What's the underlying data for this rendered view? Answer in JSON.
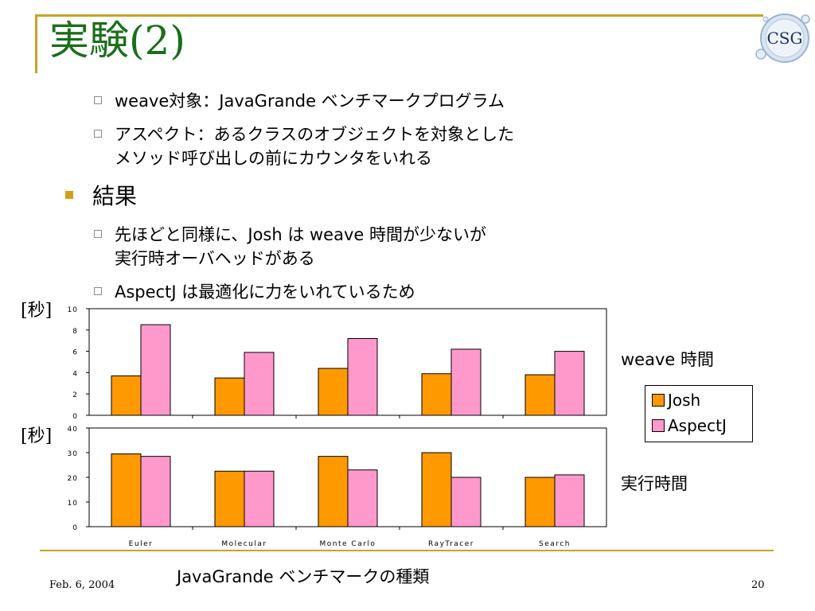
{
  "slide": {
    "title": "実験(2)",
    "logo_text": "CSG",
    "bullets": [
      {
        "text": "weave対象：JavaGrande ベンチマークプログラム"
      },
      {
        "line1": "アスペクト：あるクラスのオブジェクトを対象とした",
        "line2": "メソッド呼び出しの前にカウンタをいれる"
      }
    ],
    "result_heading": "結果",
    "results": [
      {
        "line1": "先ほどと同様に、Josh は weave 時間が少ないが",
        "line2": "実行時オーバヘッドがある"
      },
      {
        "text": "AspectJ は最適化に力をいれているため"
      }
    ],
    "unit_label": "[秒]",
    "weave_label": "weave 時間",
    "exec_label": "実行時間",
    "footer_center": "JavaGrande ベンチマークの種類",
    "footer_date": "Feb. 6, 2004",
    "page_number": "20",
    "colors": {
      "title": "#1a6f1a",
      "accent": "#c9a227",
      "josh": "#ff9900",
      "aspectj": "#ff99cc"
    }
  },
  "legend": {
    "josh": "Josh",
    "aspectj": "AspectJ"
  },
  "chart_data": [
    {
      "type": "bar",
      "categories": [
        "Euler",
        "Molecular",
        "Monte Carlo",
        "RayTracer",
        "Search"
      ],
      "series": [
        {
          "name": "Josh",
          "values": [
            3.7,
            3.5,
            4.4,
            3.9,
            3.8
          ]
        },
        {
          "name": "AspectJ",
          "values": [
            8.5,
            5.9,
            7.2,
            6.2,
            6.0
          ]
        }
      ],
      "ylim": [
        0,
        10
      ],
      "yticks": [
        0,
        2,
        4,
        6,
        8,
        10
      ],
      "ylabel": "[秒]",
      "show_category_labels": false
    },
    {
      "type": "bar",
      "categories": [
        "Euler",
        "Molecular",
        "Monte Carlo",
        "RayTracer",
        "Search"
      ],
      "series": [
        {
          "name": "Josh",
          "values": [
            29.5,
            22.5,
            28.5,
            30,
            20
          ]
        },
        {
          "name": "AspectJ",
          "values": [
            28.5,
            22.5,
            23,
            20,
            21
          ]
        }
      ],
      "ylim": [
        0,
        40
      ],
      "yticks": [
        0,
        10,
        20,
        30,
        40
      ],
      "ylabel": "[秒]",
      "show_category_labels": true
    }
  ]
}
